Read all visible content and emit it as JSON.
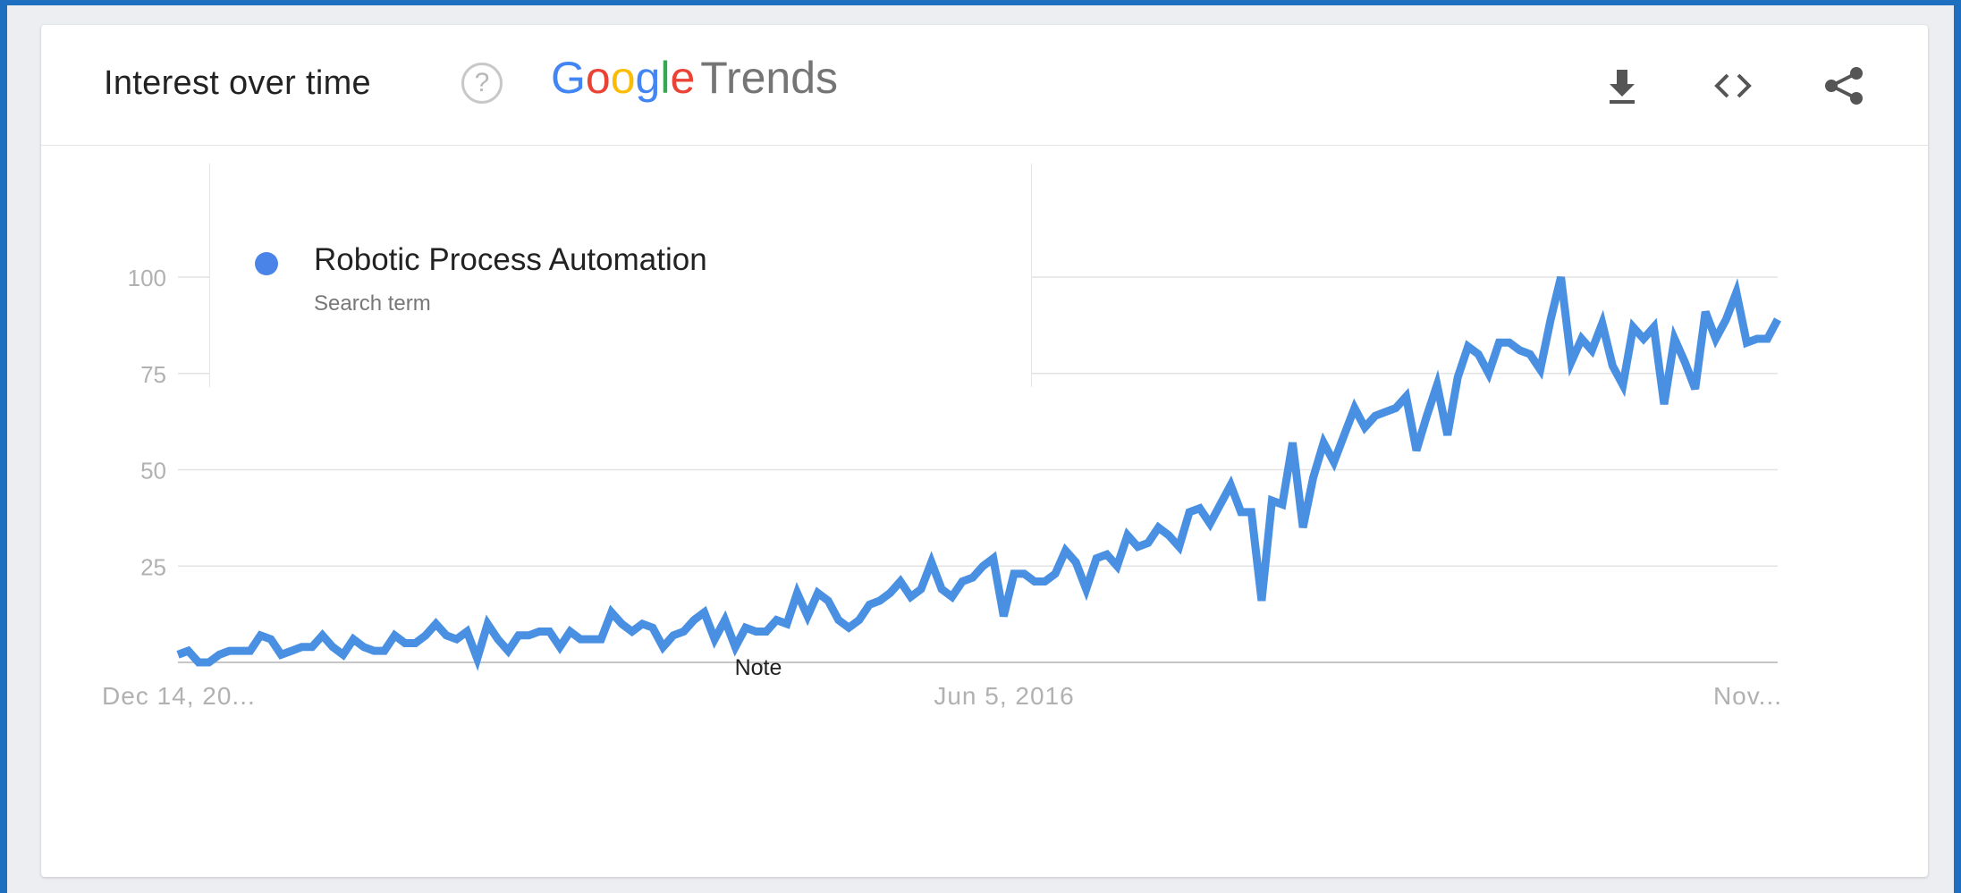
{
  "header": {
    "title": "Interest over time",
    "help_glyph": "?",
    "brand_letters": [
      "G",
      "o",
      "o",
      "g",
      "l",
      "e"
    ],
    "brand_product": "Trends",
    "tools": [
      {
        "icon": "download-icon"
      },
      {
        "icon": "embed-code-icon"
      },
      {
        "icon": "share-icon"
      }
    ]
  },
  "legend": {
    "series_name": "Robotic Process Automation",
    "subtitle": "Search term"
  },
  "colors": {
    "series": "#4a90e2",
    "grid": "#e3e3e3",
    "axis": "#c6c6c6",
    "tick_text": "#b1b1b1",
    "frame": "#1f6fc1"
  },
  "chart_data": {
    "type": "line",
    "title": "Interest over time",
    "xlabel": "",
    "ylabel": "",
    "ylim": [
      0,
      100
    ],
    "y_ticks": [
      "25",
      "50",
      "75",
      "100"
    ],
    "x_tick_labels": [
      "Dec 14, 20...",
      "Jun 5, 2016",
      "Nov..."
    ],
    "annotation": "Note",
    "grid": true,
    "legend_position": "top-left",
    "series": [
      {
        "name": "Robotic Process Automation",
        "values": [
          2,
          3,
          0,
          0,
          2,
          3,
          3,
          3,
          7,
          6,
          2,
          3,
          4,
          4,
          7,
          4,
          2,
          6,
          4,
          3,
          3,
          7,
          5,
          5,
          7,
          10,
          7,
          6,
          8,
          1,
          10,
          6,
          3,
          7,
          7,
          8,
          8,
          4,
          8,
          6,
          6,
          6,
          13,
          10,
          8,
          10,
          9,
          4,
          7,
          8,
          11,
          13,
          6,
          11,
          4,
          9,
          8,
          8,
          11,
          10,
          18,
          12,
          18,
          16,
          11,
          9,
          11,
          15,
          16,
          18,
          21,
          17,
          19,
          26,
          19,
          17,
          21,
          22,
          25,
          27,
          12,
          23,
          23,
          21,
          21,
          23,
          29,
          26,
          19,
          27,
          28,
          25,
          33,
          30,
          31,
          35,
          33,
          30,
          39,
          40,
          36,
          41,
          46,
          39,
          39,
          16,
          42,
          41,
          57,
          35,
          48,
          57,
          52,
          59,
          66,
          61,
          64,
          65,
          66,
          69,
          55,
          64,
          72,
          59,
          74,
          82,
          80,
          75,
          83,
          83,
          81,
          80,
          76,
          89,
          100,
          78,
          84,
          81,
          88,
          77,
          72,
          87,
          84,
          87,
          67,
          84,
          78,
          71,
          91,
          84,
          89,
          96,
          83,
          84,
          84,
          89
        ]
      }
    ]
  }
}
